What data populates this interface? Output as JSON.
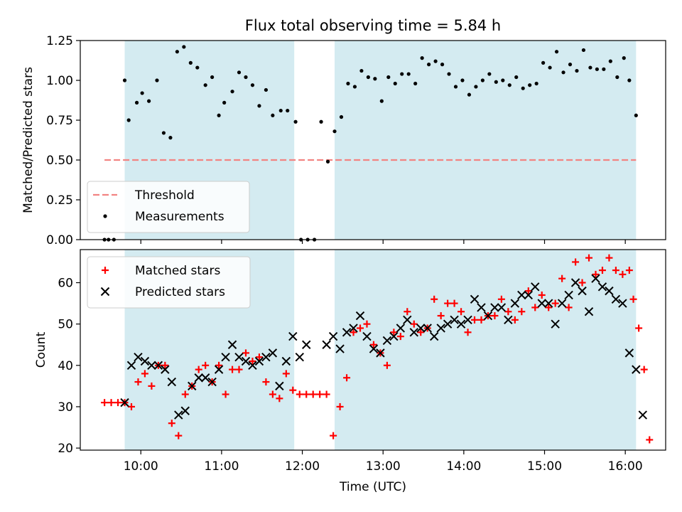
{
  "chart_data": [
    {
      "type": "scatter",
      "title": "Flux total observing time = 5.84 h",
      "xlabel": "",
      "ylabel": "Matched/Predicted stars",
      "xlim": [
        "09:15",
        "16:30"
      ],
      "ylim": [
        0,
        1.25
      ],
      "yticks": [
        "0.00",
        "0.25",
        "0.50",
        "0.75",
        "1.00",
        "1.25"
      ],
      "xticks": [
        "10:00",
        "11:00",
        "12:00",
        "13:00",
        "14:00",
        "15:00",
        "16:00"
      ],
      "grid": false,
      "legend_position": "lower-left",
      "shaded_intervals": [
        [
          "09:48",
          "11:54"
        ],
        [
          "12:24",
          "16:08"
        ]
      ],
      "shade_color": "#d4ebf1",
      "threshold": {
        "name": "Threshold",
        "value": 0.5,
        "x_range": [
          "09:33",
          "16:08"
        ],
        "color": "#f28482",
        "style": "dashed"
      },
      "series": [
        {
          "name": "Measurements",
          "color": "#000000",
          "marker": "dot",
          "points": [
            [
              "09:33",
              0
            ],
            [
              "09:36",
              0
            ],
            [
              "09:40",
              0
            ],
            [
              "09:48",
              1.0
            ],
            [
              "09:51",
              0.75
            ],
            [
              "09:57",
              0.86
            ],
            [
              "10:01",
              0.92
            ],
            [
              "10:06",
              0.87
            ],
            [
              "10:12",
              1.0
            ],
            [
              "10:17",
              0.67
            ],
            [
              "10:22",
              0.64
            ],
            [
              "10:27",
              1.18
            ],
            [
              "10:32",
              1.21
            ],
            [
              "10:37",
              1.11
            ],
            [
              "10:42",
              1.08
            ],
            [
              "10:48",
              0.97
            ],
            [
              "10:53",
              1.02
            ],
            [
              "10:58",
              0.78
            ],
            [
              "11:02",
              0.86
            ],
            [
              "11:08",
              0.93
            ],
            [
              "11:13",
              1.05
            ],
            [
              "11:18",
              1.02
            ],
            [
              "11:23",
              0.97
            ],
            [
              "11:28",
              0.84
            ],
            [
              "11:33",
              0.94
            ],
            [
              "11:38",
              0.78
            ],
            [
              "11:44",
              0.81
            ],
            [
              "11:49",
              0.81
            ],
            [
              "11:55",
              0.74
            ],
            [
              "11:59",
              0
            ],
            [
              "12:04",
              0
            ],
            [
              "12:09",
              0
            ],
            [
              "12:14",
              0.74
            ],
            [
              "12:19",
              0.49
            ],
            [
              "12:24",
              0.68
            ],
            [
              "12:29",
              0.77
            ],
            [
              "12:34",
              0.98
            ],
            [
              "12:39",
              0.96
            ],
            [
              "12:44",
              1.06
            ],
            [
              "12:49",
              1.02
            ],
            [
              "12:54",
              1.01
            ],
            [
              "12:59",
              0.87
            ],
            [
              "13:04",
              1.02
            ],
            [
              "13:09",
              0.98
            ],
            [
              "13:14",
              1.04
            ],
            [
              "13:19",
              1.04
            ],
            [
              "13:24",
              0.98
            ],
            [
              "13:29",
              1.14
            ],
            [
              "13:34",
              1.1
            ],
            [
              "13:39",
              1.12
            ],
            [
              "13:44",
              1.1
            ],
            [
              "13:49",
              1.04
            ],
            [
              "13:54",
              0.96
            ],
            [
              "13:59",
              1.0
            ],
            [
              "14:04",
              0.91
            ],
            [
              "14:09",
              0.96
            ],
            [
              "14:14",
              1.0
            ],
            [
              "14:19",
              1.04
            ],
            [
              "14:24",
              0.99
            ],
            [
              "14:29",
              1.0
            ],
            [
              "14:34",
              0.97
            ],
            [
              "14:39",
              1.02
            ],
            [
              "14:44",
              0.95
            ],
            [
              "14:49",
              0.97
            ],
            [
              "14:54",
              0.98
            ],
            [
              "14:59",
              1.11
            ],
            [
              "15:04",
              1.08
            ],
            [
              "15:09",
              1.18
            ],
            [
              "15:14",
              1.05
            ],
            [
              "15:19",
              1.1
            ],
            [
              "15:24",
              1.06
            ],
            [
              "15:29",
              1.19
            ],
            [
              "15:34",
              1.08
            ],
            [
              "15:39",
              1.07
            ],
            [
              "15:44",
              1.07
            ],
            [
              "15:49",
              1.12
            ],
            [
              "15:54",
              1.02
            ],
            [
              "15:59",
              1.14
            ],
            [
              "16:03",
              1.0
            ],
            [
              "16:08",
              0.78
            ]
          ]
        }
      ]
    },
    {
      "type": "scatter",
      "title": "",
      "xlabel": "Time (UTC)",
      "ylabel": "Count",
      "xlim": [
        "09:15",
        "16:30"
      ],
      "ylim": [
        19.5,
        68
      ],
      "yticks": [
        "20",
        "30",
        "40",
        "50",
        "60"
      ],
      "xticks": [
        "10:00",
        "11:00",
        "12:00",
        "13:00",
        "14:00",
        "15:00",
        "16:00"
      ],
      "grid": false,
      "legend_position": "upper-left",
      "shaded_intervals": [
        [
          "09:48",
          "11:54"
        ],
        [
          "12:24",
          "16:08"
        ]
      ],
      "shade_color": "#d4ebf1",
      "series": [
        {
          "name": "Matched stars",
          "color": "#ff0000",
          "marker": "plus",
          "points": [
            [
              "09:33",
              31
            ],
            [
              "09:38",
              31
            ],
            [
              "09:43",
              31
            ],
            [
              "09:48",
              31
            ],
            [
              "09:53",
              30
            ],
            [
              "09:58",
              36
            ],
            [
              "10:03",
              38
            ],
            [
              "10:08",
              35
            ],
            [
              "10:13",
              40
            ],
            [
              "10:18",
              40
            ],
            [
              "10:23",
              26
            ],
            [
              "10:28",
              23
            ],
            [
              "10:33",
              33
            ],
            [
              "10:38",
              35
            ],
            [
              "10:43",
              39
            ],
            [
              "10:48",
              40
            ],
            [
              "10:53",
              36
            ],
            [
              "10:58",
              40
            ],
            [
              "11:03",
              33
            ],
            [
              "11:08",
              39
            ],
            [
              "11:13",
              39
            ],
            [
              "11:18",
              43
            ],
            [
              "11:23",
              41
            ],
            [
              "11:28",
              42
            ],
            [
              "11:33",
              36
            ],
            [
              "11:38",
              33
            ],
            [
              "11:43",
              32
            ],
            [
              "11:48",
              38
            ],
            [
              "11:53",
              34
            ],
            [
              "11:58",
              33
            ],
            [
              "12:03",
              33
            ],
            [
              "12:08",
              33
            ],
            [
              "12:13",
              33
            ],
            [
              "12:18",
              33
            ],
            [
              "12:23",
              23
            ],
            [
              "12:28",
              30
            ],
            [
              "12:33",
              37
            ],
            [
              "12:38",
              48
            ],
            [
              "12:43",
              49
            ],
            [
              "12:48",
              50
            ],
            [
              "12:53",
              45
            ],
            [
              "12:58",
              43
            ],
            [
              "13:03",
              40
            ],
            [
              "13:08",
              48
            ],
            [
              "13:13",
              47
            ],
            [
              "13:18",
              53
            ],
            [
              "13:23",
              50
            ],
            [
              "13:28",
              48
            ],
            [
              "13:33",
              49
            ],
            [
              "13:38",
              56
            ],
            [
              "13:43",
              52
            ],
            [
              "13:48",
              55
            ],
            [
              "13:53",
              55
            ],
            [
              "13:58",
              53
            ],
            [
              "14:03",
              48
            ],
            [
              "14:08",
              51
            ],
            [
              "14:13",
              51
            ],
            [
              "14:18",
              52
            ],
            [
              "14:23",
              52
            ],
            [
              "14:28",
              56
            ],
            [
              "14:33",
              53
            ],
            [
              "14:38",
              51
            ],
            [
              "14:43",
              53
            ],
            [
              "14:48",
              58
            ],
            [
              "14:53",
              54
            ],
            [
              "14:58",
              57
            ],
            [
              "15:03",
              54
            ],
            [
              "15:08",
              55
            ],
            [
              "15:13",
              61
            ],
            [
              "15:18",
              54
            ],
            [
              "15:23",
              65
            ],
            [
              "15:28",
              60
            ],
            [
              "15:33",
              66
            ],
            [
              "15:38",
              62
            ],
            [
              "15:43",
              63
            ],
            [
              "15:48",
              66
            ],
            [
              "15:53",
              63
            ],
            [
              "15:58",
              62
            ],
            [
              "16:03",
              63
            ],
            [
              "16:06",
              56
            ],
            [
              "16:10",
              49
            ],
            [
              "16:14",
              39
            ],
            [
              "16:18",
              22
            ]
          ]
        },
        {
          "name": "Predicted stars",
          "color": "#000000",
          "marker": "cross",
          "points": [
            [
              "09:48",
              31
            ],
            [
              "09:53",
              40
            ],
            [
              "09:58",
              42
            ],
            [
              "10:03",
              41
            ],
            [
              "10:08",
              40
            ],
            [
              "10:13",
              40
            ],
            [
              "10:18",
              39
            ],
            [
              "10:23",
              36
            ],
            [
              "10:28",
              28
            ],
            [
              "10:33",
              29
            ],
            [
              "10:38",
              35
            ],
            [
              "10:43",
              37
            ],
            [
              "10:48",
              37
            ],
            [
              "10:53",
              36
            ],
            [
              "10:58",
              39
            ],
            [
              "11:03",
              42
            ],
            [
              "11:08",
              45
            ],
            [
              "11:13",
              42
            ],
            [
              "11:18",
              41
            ],
            [
              "11:23",
              40
            ],
            [
              "11:28",
              41
            ],
            [
              "11:33",
              42
            ],
            [
              "11:38",
              43
            ],
            [
              "11:43",
              35
            ],
            [
              "11:48",
              41
            ],
            [
              "11:53",
              47
            ],
            [
              "11:58",
              42
            ],
            [
              "12:03",
              45
            ],
            [
              "12:18",
              45
            ],
            [
              "12:23",
              47
            ],
            [
              "12:28",
              44
            ],
            [
              "12:33",
              48
            ],
            [
              "12:38",
              49
            ],
            [
              "12:43",
              52
            ],
            [
              "12:48",
              47
            ],
            [
              "12:53",
              44
            ],
            [
              "12:58",
              43
            ],
            [
              "13:03",
              46
            ],
            [
              "13:08",
              47
            ],
            [
              "13:13",
              49
            ],
            [
              "13:18",
              51
            ],
            [
              "13:23",
              48
            ],
            [
              "13:28",
              49
            ],
            [
              "13:33",
              49
            ],
            [
              "13:38",
              47
            ],
            [
              "13:43",
              49
            ],
            [
              "13:48",
              50
            ],
            [
              "13:53",
              51
            ],
            [
              "13:58",
              50
            ],
            [
              "14:03",
              51
            ],
            [
              "14:08",
              56
            ],
            [
              "14:13",
              54
            ],
            [
              "14:18",
              52
            ],
            [
              "14:23",
              54
            ],
            [
              "14:28",
              54
            ],
            [
              "14:33",
              51
            ],
            [
              "14:38",
              55
            ],
            [
              "14:43",
              57
            ],
            [
              "14:48",
              57
            ],
            [
              "14:53",
              59
            ],
            [
              "14:58",
              55
            ],
            [
              "15:03",
              55
            ],
            [
              "15:08",
              50
            ],
            [
              "15:13",
              55
            ],
            [
              "15:18",
              57
            ],
            [
              "15:23",
              60
            ],
            [
              "15:28",
              58
            ],
            [
              "15:33",
              53
            ],
            [
              "15:38",
              61
            ],
            [
              "15:43",
              59
            ],
            [
              "15:48",
              58
            ],
            [
              "15:53",
              56
            ],
            [
              "15:58",
              55
            ],
            [
              "16:03",
              43
            ],
            [
              "16:08",
              39
            ],
            [
              "16:13",
              28
            ]
          ]
        }
      ]
    }
  ]
}
